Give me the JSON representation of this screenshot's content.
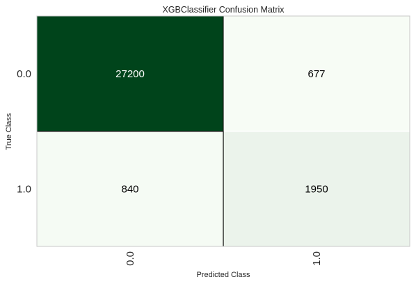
{
  "chart_data": {
    "type": "heatmap",
    "title": "XGBClassifier Confusion Matrix",
    "xlabel": "Predicted Class",
    "ylabel": "True Class",
    "x_categories": [
      "0.0",
      "1.0"
    ],
    "y_categories": [
      "0.0",
      "1.0"
    ],
    "values": [
      [
        27200,
        677
      ],
      [
        840,
        1950
      ]
    ],
    "colormap": "Greens",
    "colors": {
      "high": "#00441b",
      "low": "#f7fcf5",
      "text_on_dark": "#ffffff",
      "text_on_light": "#000000",
      "border": "#c8c8c8"
    },
    "grid": false,
    "legend": "none"
  }
}
